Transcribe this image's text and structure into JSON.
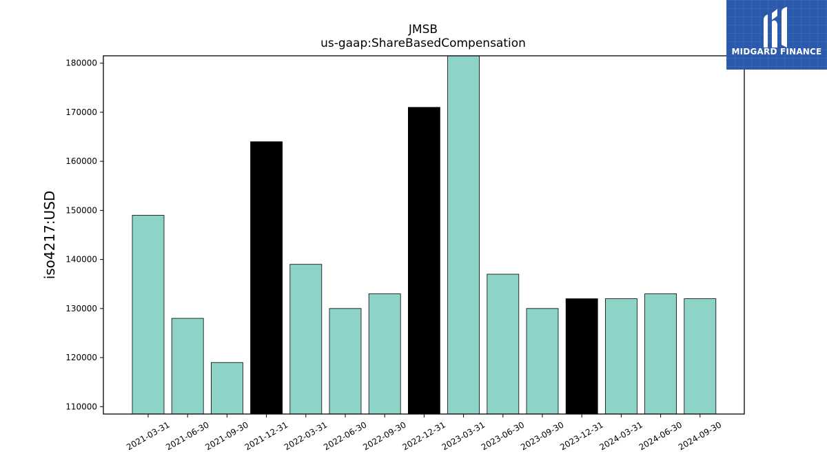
{
  "chart_data": {
    "type": "bar",
    "title": "JMSB",
    "subtitle": "us-gaap:ShareBasedCompensation",
    "xlabel": "",
    "ylabel": "iso4217:USD",
    "ylim": [
      108500,
      181500
    ],
    "yticks": [
      110000,
      120000,
      130000,
      140000,
      150000,
      160000,
      170000,
      180000
    ],
    "grid": false,
    "categories": [
      "2021-03-31",
      "2021-06-30",
      "2021-09-30",
      "2021-12-31",
      "2022-03-31",
      "2022-06-30",
      "2022-09-30",
      "2022-12-31",
      "2023-03-31",
      "2023-06-30",
      "2023-09-30",
      "2023-12-31",
      "2024-03-31",
      "2024-06-30",
      "2024-09-30"
    ],
    "values": [
      149000,
      128000,
      119000,
      164000,
      139000,
      130000,
      133000,
      171000,
      182000,
      137000,
      130000,
      132000,
      132000,
      133000,
      132000
    ],
    "bar_colors": [
      "#8dd3c7",
      "#8dd3c7",
      "#8dd3c7",
      "#000000",
      "#8dd3c7",
      "#8dd3c7",
      "#8dd3c7",
      "#000000",
      "#8dd3c7",
      "#8dd3c7",
      "#8dd3c7",
      "#000000",
      "#8dd3c7",
      "#8dd3c7",
      "#8dd3c7"
    ]
  },
  "logo": {
    "text": "MIDGARD FINANCE",
    "background": "#2b5aad",
    "icon": "midgard-m-logo-icon"
  }
}
